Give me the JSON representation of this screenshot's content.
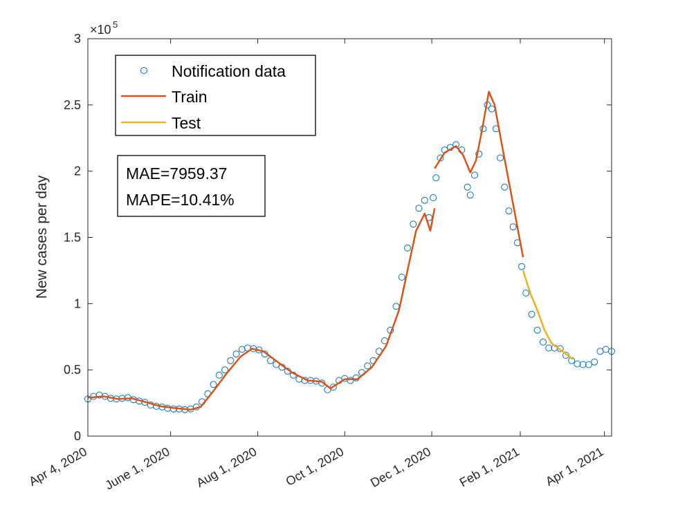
{
  "chart_data": {
    "type": "line",
    "ylabel": "New cases per day",
    "y_exponent_label": "×10",
    "y_exponent_power": "5",
    "ylim": [
      0,
      300000
    ],
    "xlim": [
      "2020-04-04",
      "2021-04-06"
    ],
    "yticks": [
      {
        "value": 0,
        "label": "0"
      },
      {
        "value": 50000,
        "label": "0.5"
      },
      {
        "value": 100000,
        "label": "1"
      },
      {
        "value": 150000,
        "label": "1.5"
      },
      {
        "value": 200000,
        "label": "2"
      },
      {
        "value": 250000,
        "label": "2.5"
      },
      {
        "value": 300000,
        "label": "3"
      }
    ],
    "xticks": [
      {
        "date": "2020-04-04",
        "label": "Apr 4, 2020"
      },
      {
        "date": "2020-06-01",
        "label": "June 1, 2020"
      },
      {
        "date": "2020-08-01",
        "label": "Aug 1, 2020"
      },
      {
        "date": "2020-10-01",
        "label": "Oct 1, 2020"
      },
      {
        "date": "2020-12-01",
        "label": "Dec 1, 2020"
      },
      {
        "date": "2021-02-01",
        "label": "Feb 1, 2021"
      },
      {
        "date": "2021-04-01",
        "label": "Apr 1, 2021"
      }
    ],
    "colors": {
      "notification": "#0072BD",
      "train": "#D95319",
      "test": "#EDB120"
    },
    "legend": {
      "position": "top-left",
      "items": [
        "Notification data",
        "Train",
        "Test"
      ]
    },
    "metrics": [
      "MAE=7959.37",
      "MAPE=10.41%"
    ],
    "series": [
      {
        "name": "Notification data",
        "style": "markers",
        "points": [
          [
            "2020-04-04",
            28000
          ],
          [
            "2020-04-08",
            30000
          ],
          [
            "2020-04-12",
            31000
          ],
          [
            "2020-04-16",
            30000
          ],
          [
            "2020-04-20",
            28500
          ],
          [
            "2020-04-24",
            28000
          ],
          [
            "2020-04-28",
            28500
          ],
          [
            "2020-05-02",
            29000
          ],
          [
            "2020-05-06",
            27500
          ],
          [
            "2020-05-10",
            26500
          ],
          [
            "2020-05-14",
            25500
          ],
          [
            "2020-05-18",
            23500
          ],
          [
            "2020-05-22",
            22500
          ],
          [
            "2020-05-26",
            22000
          ],
          [
            "2020-05-30",
            21000
          ],
          [
            "2020-06-03",
            20500
          ],
          [
            "2020-06-07",
            20500
          ],
          [
            "2020-06-11",
            20000
          ],
          [
            "2020-06-15",
            20500
          ],
          [
            "2020-06-19",
            22000
          ],
          [
            "2020-06-23",
            26000
          ],
          [
            "2020-06-27",
            32000
          ],
          [
            "2020-07-01",
            39000
          ],
          [
            "2020-07-05",
            46000
          ],
          [
            "2020-07-09",
            50000
          ],
          [
            "2020-07-13",
            57000
          ],
          [
            "2020-07-17",
            62000
          ],
          [
            "2020-07-21",
            65500
          ],
          [
            "2020-07-25",
            66500
          ],
          [
            "2020-07-29",
            66000
          ],
          [
            "2020-08-02",
            65000
          ],
          [
            "2020-08-06",
            62000
          ],
          [
            "2020-08-10",
            57000
          ],
          [
            "2020-08-14",
            54000
          ],
          [
            "2020-08-18",
            52000
          ],
          [
            "2020-08-22",
            49000
          ],
          [
            "2020-08-26",
            46000
          ],
          [
            "2020-08-30",
            43000
          ],
          [
            "2020-09-03",
            42000
          ],
          [
            "2020-09-07",
            42000
          ],
          [
            "2020-09-11",
            41500
          ],
          [
            "2020-09-15",
            40000
          ],
          [
            "2020-09-19",
            35000
          ],
          [
            "2020-09-23",
            37000
          ],
          [
            "2020-09-27",
            42000
          ],
          [
            "2020-10-01",
            43500
          ],
          [
            "2020-10-05",
            42000
          ],
          [
            "2020-10-09",
            44000
          ],
          [
            "2020-10-13",
            48000
          ],
          [
            "2020-10-17",
            53000
          ],
          [
            "2020-10-21",
            57000
          ],
          [
            "2020-10-25",
            64000
          ],
          [
            "2020-10-29",
            72000
          ],
          [
            "2020-11-02",
            80000
          ],
          [
            "2020-11-06",
            98000
          ],
          [
            "2020-11-10",
            120000
          ],
          [
            "2020-11-14",
            142000
          ],
          [
            "2020-11-18",
            160000
          ],
          [
            "2020-11-22",
            172000
          ],
          [
            "2020-11-26",
            178000
          ],
          [
            "2020-11-29",
            165000
          ],
          [
            "2020-12-02",
            180000
          ],
          [
            "2020-12-04",
            195000
          ],
          [
            "2020-12-07",
            210000
          ],
          [
            "2020-12-10",
            216000
          ],
          [
            "2020-12-14",
            218000
          ],
          [
            "2020-12-18",
            220000
          ],
          [
            "2020-12-22",
            216000
          ],
          [
            "2020-12-26",
            188000
          ],
          [
            "2020-12-28",
            182000
          ],
          [
            "2020-12-31",
            197000
          ],
          [
            "2021-01-03",
            213000
          ],
          [
            "2021-01-06",
            232000
          ],
          [
            "2021-01-09",
            250000
          ],
          [
            "2021-01-12",
            247000
          ],
          [
            "2021-01-15",
            232000
          ],
          [
            "2021-01-18",
            210000
          ],
          [
            "2021-01-21",
            188000
          ],
          [
            "2021-01-24",
            170000
          ],
          [
            "2021-01-27",
            158000
          ],
          [
            "2021-01-30",
            146000
          ],
          [
            "2021-02-02",
            128000
          ],
          [
            "2021-02-05",
            108000
          ],
          [
            "2021-02-09",
            92000
          ],
          [
            "2021-02-13",
            80000
          ],
          [
            "2021-02-17",
            71000
          ],
          [
            "2021-02-21",
            66500
          ],
          [
            "2021-02-25",
            66500
          ],
          [
            "2021-03-01",
            66000
          ],
          [
            "2021-03-05",
            61000
          ],
          [
            "2021-03-09",
            57000
          ],
          [
            "2021-03-13",
            54500
          ],
          [
            "2021-03-17",
            54000
          ],
          [
            "2021-03-21",
            54000
          ],
          [
            "2021-03-25",
            56000
          ],
          [
            "2021-03-29",
            64000
          ],
          [
            "2021-04-02",
            65500
          ],
          [
            "2021-04-06",
            64000
          ]
        ]
      },
      {
        "name": "Train",
        "style": "line",
        "segments": [
          [
            [
              "2020-04-04",
              29000
            ],
            [
              "2020-04-15",
              30000
            ],
            [
              "2020-04-25",
              28000
            ],
            [
              "2020-05-05",
              28500
            ],
            [
              "2020-05-15",
              25500
            ],
            [
              "2020-05-25",
              22500
            ],
            [
              "2020-06-05",
              21000
            ],
            [
              "2020-06-15",
              20000
            ],
            [
              "2020-06-22",
              22000
            ],
            [
              "2020-07-01",
              34000
            ],
            [
              "2020-07-10",
              47000
            ],
            [
              "2020-07-20",
              60000
            ],
            [
              "2020-07-28",
              66000
            ],
            [
              "2020-08-05",
              64000
            ],
            [
              "2020-08-15",
              56000
            ],
            [
              "2020-08-25",
              48000
            ],
            [
              "2020-09-05",
              42000
            ],
            [
              "2020-09-15",
              41000
            ],
            [
              "2020-09-21",
              36000
            ],
            [
              "2020-10-01",
              43000
            ],
            [
              "2020-10-10",
              43000
            ],
            [
              "2020-10-20",
              52000
            ],
            [
              "2020-10-30",
              68000
            ],
            [
              "2020-11-08",
              95000
            ],
            [
              "2020-11-15",
              130000
            ],
            [
              "2020-11-20",
              155000
            ],
            [
              "2020-11-26",
              168000
            ],
            [
              "2020-11-30",
              155000
            ],
            [
              "2020-12-03",
              172000
            ]
          ],
          [
            [
              "2020-12-03",
              202000
            ],
            [
              "2020-12-10",
              214000
            ],
            [
              "2020-12-18",
              219000
            ],
            [
              "2020-12-23",
              212000
            ],
            [
              "2020-12-28",
              199000
            ],
            [
              "2021-01-01",
              208000
            ],
            [
              "2021-01-05",
              230000
            ],
            [
              "2021-01-10",
              260000
            ],
            [
              "2021-01-14",
              250000
            ],
            [
              "2021-01-20",
              215000
            ],
            [
              "2021-01-27",
              175000
            ],
            [
              "2021-02-03",
              135000
            ]
          ]
        ]
      },
      {
        "name": "Test",
        "style": "line",
        "segments": [
          [
            [
              "2021-02-03",
              125000
            ],
            [
              "2021-02-08",
              108000
            ],
            [
              "2021-02-13",
              95000
            ],
            [
              "2021-02-18",
              80000
            ],
            [
              "2021-02-23",
              70000
            ],
            [
              "2021-02-28",
              66000
            ],
            [
              "2021-03-05",
              62000
            ],
            [
              "2021-03-10",
              58000
            ]
          ]
        ]
      }
    ]
  }
}
